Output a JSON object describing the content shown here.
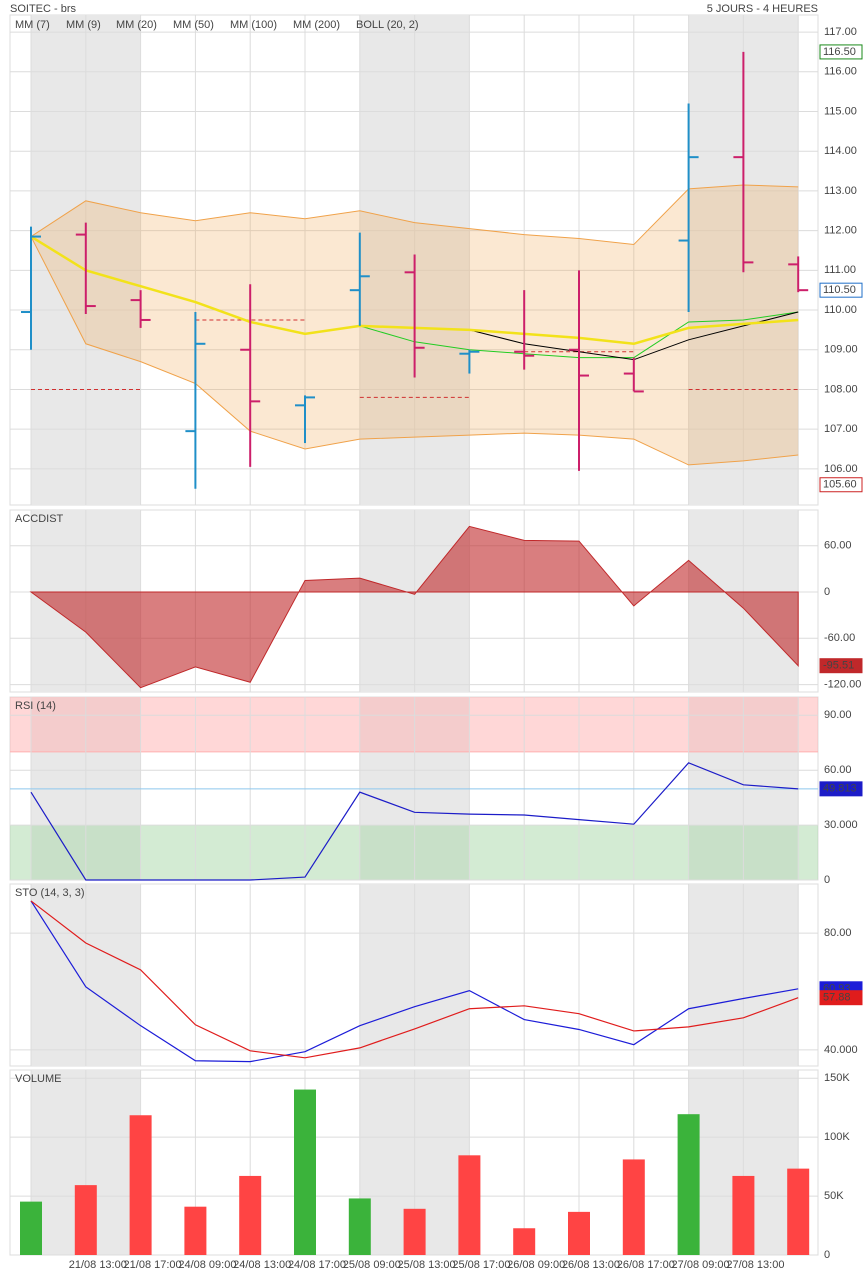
{
  "header": {
    "title": "SOITEC - brs",
    "period": "5 JOURS - 4 HEURES"
  },
  "chart_data": [
    {
      "type": "ohlc",
      "open": [
        109.95,
        111.9,
        110.25,
        106.95,
        109.0,
        107.6,
        110.5,
        110.95,
        108.9,
        108.95,
        109.0,
        108.4,
        111.75,
        113.85,
        111.15
      ],
      "high": [
        112.1,
        112.2,
        110.5,
        109.95,
        110.65,
        107.85,
        111.95,
        111.4,
        109.0,
        110.5,
        111.0,
        108.8,
        115.2,
        116.5,
        111.35
      ],
      "low": [
        109.0,
        109.9,
        109.55,
        105.5,
        106.05,
        106.65,
        109.6,
        108.3,
        108.4,
        108.5,
        105.95,
        107.95,
        109.95,
        110.95,
        110.45
      ],
      "close": [
        111.85,
        110.1,
        109.75,
        109.15,
        107.7,
        107.8,
        110.85,
        109.05,
        108.95,
        108.85,
        108.35,
        107.95,
        113.85,
        111.2,
        110.5
      ],
      "up_color": "#1f8fc8",
      "down_color": "#cc1f6a",
      "series": [
        {
          "name": "MM (7)",
          "color": "#22cc22",
          "values": [
            null,
            null,
            null,
            null,
            null,
            null,
            109.6,
            109.2,
            109.0,
            108.9,
            108.8,
            108.8,
            109.7,
            109.75,
            109.95
          ]
        },
        {
          "name": "MM (9)",
          "color": "#000000",
          "values": [
            null,
            null,
            null,
            null,
            null,
            null,
            null,
            null,
            109.5,
            109.15,
            108.95,
            108.75,
            109.25,
            109.6,
            109.95
          ]
        },
        {
          "name": "MM (20)",
          "color": "#e02020",
          "values": [
            null,
            null,
            null,
            null,
            null,
            null,
            null,
            null,
            null,
            null,
            null,
            null,
            null,
            null,
            null
          ]
        },
        {
          "name": "MM (50)",
          "color": "#1c1cd8",
          "values": [
            null,
            null,
            null,
            null,
            null,
            null,
            null,
            null,
            null,
            null,
            null,
            null,
            null,
            null,
            null
          ]
        },
        {
          "name": "MM (100)",
          "color": "#dd22dd",
          "values": [
            null,
            null,
            null,
            null,
            null,
            null,
            null,
            null,
            null,
            null,
            null,
            null,
            null,
            null,
            null
          ]
        },
        {
          "name": "MM (200)",
          "color": "#f2e21a",
          "values": [
            111.85,
            111.0,
            110.6,
            110.2,
            109.7,
            109.4,
            109.6,
            109.55,
            109.5,
            109.4,
            109.3,
            109.15,
            109.55,
            109.65,
            109.75
          ]
        }
      ],
      "bollinger": {
        "name": "BOLL (20, 2)",
        "color": "#f0a24a",
        "upper": [
          111.85,
          112.75,
          112.45,
          112.25,
          112.45,
          112.3,
          112.5,
          112.2,
          112.05,
          111.9,
          111.8,
          111.65,
          113.05,
          113.15,
          113.1
        ],
        "lower": [
          111.85,
          109.15,
          108.7,
          108.15,
          106.95,
          106.5,
          106.75,
          106.8,
          106.85,
          106.9,
          106.85,
          106.75,
          106.1,
          106.2,
          106.35
        ]
      },
      "levels": [
        {
          "from": 0,
          "to": 2,
          "value": 108.0
        },
        {
          "from": 3,
          "to": 5,
          "value": 109.75
        },
        {
          "from": 6,
          "to": 8,
          "value": 107.8
        },
        {
          "from": 9,
          "to": 11,
          "value": 108.95
        },
        {
          "from": 12,
          "to": 14,
          "value": 108.0
        }
      ],
      "ylim": [
        105.09,
        117.43
      ],
      "yticks": [
        {
          "value": 106,
          "label": "106.00"
        },
        {
          "value": 107,
          "label": "107.00"
        },
        {
          "value": 108,
          "label": "108.00"
        },
        {
          "value": 109,
          "label": "109.00"
        },
        {
          "value": 110,
          "label": "110.00"
        },
        {
          "value": 111,
          "label": "111.00"
        },
        {
          "value": 112,
          "label": "112.00"
        },
        {
          "value": 113,
          "label": "113.00"
        },
        {
          "value": 114,
          "label": "114.00"
        },
        {
          "value": 115,
          "label": "115.00"
        },
        {
          "value": 116,
          "label": "116.00"
        },
        {
          "value": 117,
          "label": "117.00"
        }
      ],
      "markers": [
        {
          "value": 116.5,
          "label": "116.50",
          "color": "#1a8a1a"
        },
        {
          "value": 110.5,
          "label": "110.50",
          "color": "#1f6fc8"
        },
        {
          "value": 105.6,
          "label": "105.60",
          "color": "#cc2222"
        }
      ]
    },
    {
      "type": "area",
      "title": "ACCDIST",
      "color": "#c0282a",
      "values": [
        0,
        -52,
        -124,
        -97,
        -117,
        15,
        18,
        -3,
        85,
        67,
        66,
        -18,
        41,
        -21,
        -95.51
      ],
      "ylim": [
        -129.6,
        106.3
      ],
      "yticks": [
        {
          "value": 60,
          "label": "60.00"
        },
        0,
        {
          "value": -60,
          "label": "-60.00"
        },
        {
          "value": -120,
          "label": "-120.00"
        }
      ]
    },
    {
      "type": "line",
      "title": "RSI (14)",
      "title_color": "#1c1ca8",
      "series": [
        {
          "color": "#1c1cc8",
          "values": [
            48,
            0,
            0,
            0,
            0,
            1.6,
            48,
            37,
            36,
            35.5,
            33,
            30.5,
            64,
            52,
            49.813
          ]
        }
      ],
      "bands": [
        {
          "from": 70,
          "to": 100,
          "color": "#ffb0b0"
        },
        {
          "from": 0,
          "to": 30,
          "color": "#a8d8a8"
        }
      ],
      "ylim": [
        0,
        100
      ],
      "yticks": [
        0,
        {
          "value": 30,
          "label": "30.000"
        },
        {
          "value": 60,
          "label": "60.00"
        },
        {
          "value": 90,
          "label": "90.00"
        }
      ]
    },
    {
      "type": "line",
      "title": "STO (14, 3, 3)",
      "title_color": "#1c1ca8",
      "series": [
        {
          "color": "#1c1cd8",
          "values": [
            91,
            61.6,
            48.3,
            36.3,
            36,
            39.4,
            48.3,
            54.8,
            60.3,
            50.4,
            47,
            41.8,
            54.1,
            57.6,
            60.93
          ]
        },
        {
          "color": "#e01c1c",
          "values": [
            91,
            76.6,
            67.4,
            48.6,
            39.7,
            37.3,
            40.7,
            47.2,
            54.1,
            55.1,
            52.4,
            46.5,
            47.9,
            51,
            57.88
          ]
        }
      ],
      "ylim": [
        34.5,
        96.8
      ],
      "yticks": [
        {
          "value": 40,
          "label": "40.000"
        },
        {
          "value": 80,
          "label": "80.00"
        }
      ]
    },
    {
      "type": "bar",
      "title": "VOLUME",
      "title_color": "#2aa02a",
      "categories": [
        null,
        "21/08 13:00",
        "21/08 17:00",
        "24/08 09:00",
        "24/08 13:00",
        "24/08 17:00",
        "25/08 09:00",
        "25/08 13:00",
        "25/08 17:00",
        "26/08 09:00",
        "26/08 13:00",
        "26/08 17:00",
        "27/08 09:00",
        "27/08 13:00",
        null
      ],
      "values": [
        45300,
        59300,
        118600,
        41000,
        67100,
        140400,
        48000,
        39200,
        84600,
        22700,
        36600,
        81100,
        119500,
        67100,
        73300
      ],
      "colors": [
        "#3bb33b",
        "#ff4444",
        "#ff4444",
        "#ff4444",
        "#ff4444",
        "#3bb33b",
        "#3bb33b",
        "#ff4444",
        "#ff4444",
        "#ff4444",
        "#ff4444",
        "#ff4444",
        "#3bb33b",
        "#ff4444",
        "#ff4444"
      ],
      "ylim": [
        0,
        157000
      ],
      "yticks": [
        0,
        {
          "value": 50000,
          "label": "50K"
        },
        {
          "value": 100000,
          "label": "100K"
        },
        {
          "value": 150000,
          "label": "150K"
        }
      ]
    }
  ]
}
